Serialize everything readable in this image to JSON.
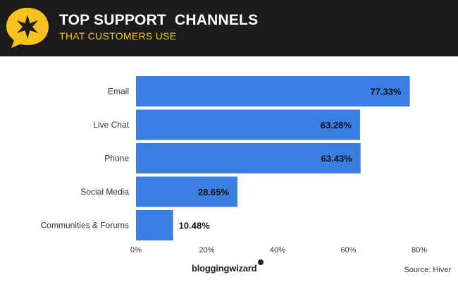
{
  "header": {
    "title": "TOP SUPPORT  CHANNELS",
    "subtitle": "THAT CUSTOMERS USE",
    "badge_icon": "star-speech-bubble-icon"
  },
  "footer": {
    "brand": "bloggingwizard",
    "source": "Source: Hiver"
  },
  "colors": {
    "bar": "#3a7de3",
    "header_bg": "#1c1c1c",
    "accent": "#f6c21b"
  },
  "chart_data": {
    "type": "bar",
    "orientation": "horizontal",
    "categories": [
      "Email",
      "Live Chat",
      "Phone",
      "Social Media",
      "Communities & Forums"
    ],
    "values": [
      77.33,
      63.28,
      63.43,
      28.65,
      10.48
    ],
    "value_labels": [
      "77.33%",
      "63.28%",
      "63.43%",
      "28.65%",
      "10.48%"
    ],
    "x_ticks": [
      "0%",
      "20%",
      "40%",
      "60%",
      "80%"
    ],
    "xlim": [
      0,
      80
    ],
    "grid": false,
    "legend": false
  }
}
